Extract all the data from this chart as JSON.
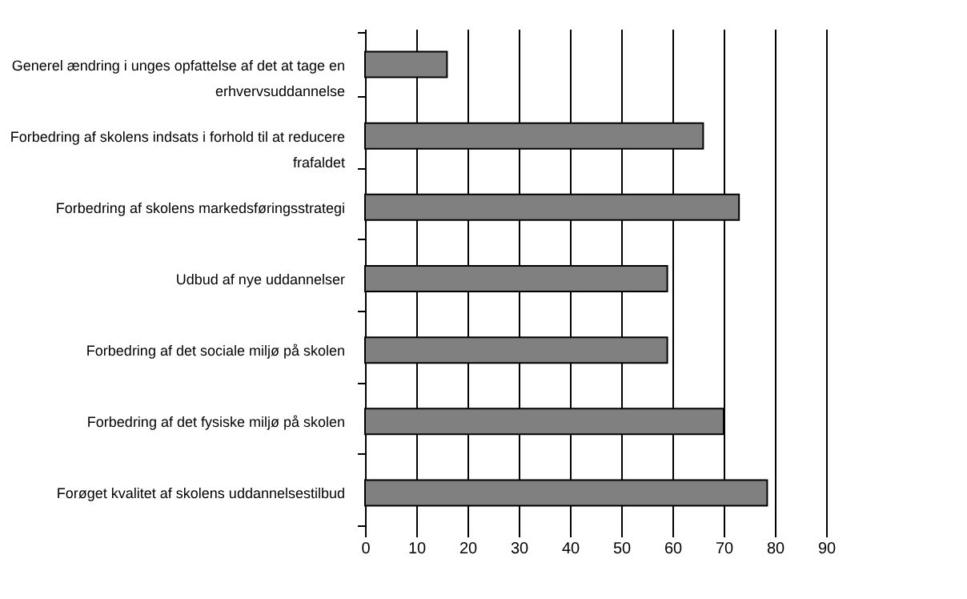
{
  "chart_data": {
    "type": "bar",
    "orientation": "horizontal",
    "categories": [
      "Generel ændring i unges opfattelse af det at tage en erhvervsuddannelse",
      "Forbedring af skolens indsats i forhold til at reducere frafaldet",
      "Forbedring af skolens markedsføringsstrategi",
      "Udbud af nye uddannelser",
      "Forbedring af det sociale miljø på skolen",
      "Forbedring af det fysiske miljø på skolen",
      "Forøget kvalitet af skolens uddannelsestilbud"
    ],
    "values": [
      16,
      66,
      73,
      59,
      59,
      70,
      78.5
    ],
    "color": "#808080",
    "xlim": [
      0,
      90
    ],
    "xticks": [
      0,
      10,
      20,
      30,
      40,
      50,
      60,
      70,
      80,
      90
    ],
    "grid": "x"
  }
}
